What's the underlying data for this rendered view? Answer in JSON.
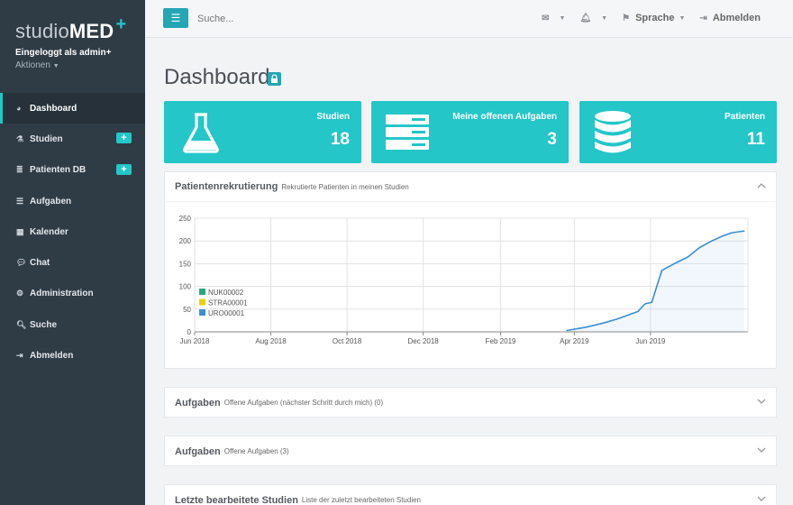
{
  "brand": {
    "studio": "studio",
    "med": "MED",
    "plus": "+"
  },
  "user": {
    "logged_in": "Eingeloggt als admin+",
    "actions": "Aktionen"
  },
  "nav": [
    {
      "label": "Dashboard",
      "icon": "dashboard-icon",
      "active": true,
      "badge": ""
    },
    {
      "label": "Studien",
      "icon": "flask-icon",
      "active": false,
      "badge": "+"
    },
    {
      "label": "Patienten DB",
      "icon": "database-icon",
      "active": false,
      "badge": "+"
    },
    {
      "label": "Aufgaben",
      "icon": "tasks-icon",
      "active": false,
      "badge": ""
    },
    {
      "label": "Kalender",
      "icon": "calendar-icon",
      "active": false,
      "badge": ""
    },
    {
      "label": "Chat",
      "icon": "chat-icon",
      "active": false,
      "badge": ""
    },
    {
      "label": "Administration",
      "icon": "gears-icon",
      "active": false,
      "badge": ""
    },
    {
      "label": "Suche",
      "icon": "search-icon",
      "active": false,
      "badge": ""
    },
    {
      "label": "Abmelden",
      "icon": "logout-icon",
      "active": false,
      "badge": ""
    }
  ],
  "topbar": {
    "search_placeholder": "Suche...",
    "language": "Sprache",
    "logout": "Abmelden"
  },
  "page": {
    "title": "Dashboard"
  },
  "cards": [
    {
      "label": "Studien",
      "value": "18",
      "icon": "flask-icon"
    },
    {
      "label": "Meine offenen Aufgaben",
      "value": "3",
      "icon": "server-icon"
    },
    {
      "label": "Patienten",
      "value": "11",
      "icon": "database-icon"
    }
  ],
  "panels": {
    "recruitment": {
      "title": "Patientenrekrutierung",
      "subtitle": "Rekrutierte Patienten in meinen Studien"
    },
    "tasks_mine": {
      "title": "Aufgaben",
      "subtitle": "Offene Aufgaben (nächster Schritt durch mich) (0)"
    },
    "tasks_open": {
      "title": "Aufgaben",
      "subtitle": "Offene Aufgaben (3)"
    },
    "recent": {
      "title": "Letzte bearbeitete Studien",
      "subtitle": "Liste der zuletzt bearbeiteten Studien"
    }
  },
  "chart_data": {
    "type": "line",
    "x_ticks": [
      "Jun 2018",
      "Aug 2018",
      "Oct 2018",
      "Dec 2018",
      "Feb 2019",
      "Apr 2019",
      "Jun 2019"
    ],
    "y_ticks": [
      "0",
      "50",
      "100",
      "150",
      "200",
      "250"
    ],
    "ylim": [
      0,
      250
    ],
    "xlim": [
      "2018-06-01",
      "2019-08-18"
    ],
    "grid": true,
    "legend_position": "bottom-left",
    "legend": [
      {
        "name": "NUK00002",
        "color": "#2aa87a"
      },
      {
        "name": "STRA00001",
        "color": "#e8d000"
      },
      {
        "name": "URO00001",
        "color": "#3a8fd6"
      }
    ],
    "series": [
      {
        "name": "URO00001",
        "color": "#3a8fd6",
        "x": [
          "2019-03-26",
          "2019-04-10",
          "2019-04-25",
          "2019-05-05",
          "2019-05-15",
          "2019-05-22",
          "2019-05-27",
          "2019-05-28",
          "2019-06-02",
          "2019-06-10",
          "2019-06-20",
          "2019-07-01",
          "2019-07-10",
          "2019-07-20",
          "2019-07-28",
          "2019-08-05",
          "2019-08-15"
        ],
        "y": [
          3,
          10,
          20,
          28,
          38,
          45,
          60,
          62,
          65,
          135,
          150,
          165,
          185,
          200,
          210,
          218,
          222
        ]
      }
    ]
  }
}
